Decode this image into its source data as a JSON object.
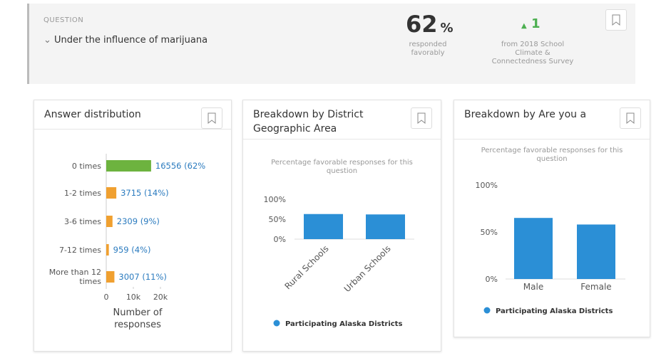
{
  "header": {
    "label": "QUESTION",
    "question": "Under the influence of marijuana",
    "score": "62",
    "score_unit": "%",
    "score_caption": "responded favorably",
    "change": "1",
    "change_caption": "from 2018 School Climate & Connectedness Survey"
  },
  "chart_data": [
    {
      "type": "hbar",
      "title": "Answer distribution",
      "categories": [
        "0 times",
        "1-2 times",
        "3-6 times",
        "7-12 times",
        "More than 12 times"
      ],
      "values": [
        16556,
        3715,
        2309,
        959,
        3007
      ],
      "value_labels": [
        "16556 (62%",
        "3715 (14%)",
        "2309 (9%)",
        "959 (4%)",
        "3007 (11%)"
      ],
      "colors": [
        "#6db33f",
        "#f0a030",
        "#f0a030",
        "#f0a030",
        "#f0a030"
      ],
      "xlim": [
        0,
        20000
      ],
      "xticks": [
        0,
        {
          "value": 10000,
          "label": "10k"
        },
        {
          "value": 20000,
          "label": "20k"
        }
      ],
      "x_label": "Number of responses"
    },
    {
      "type": "bar",
      "title": "Breakdown by District Geographic Area",
      "subtitle": "Percentage favorable responses for this question",
      "categories": [
        "Rural Schools",
        "Urban Schools"
      ],
      "values": [
        63,
        62
      ],
      "color": "#2b8fd6",
      "ylim": [
        0,
        100
      ],
      "yticks": [
        {
          "value": 0,
          "label": "0%"
        },
        {
          "value": 50,
          "label": "50%"
        },
        {
          "value": 100,
          "label": "100%"
        }
      ],
      "legend": "Participating Alaska Districts",
      "rotated_labels": true
    },
    {
      "type": "bar",
      "title": "Breakdown by Are you a",
      "subtitle": "Percentage favorable responses for this question",
      "categories": [
        "Male",
        "Female"
      ],
      "values": [
        65,
        58
      ],
      "color": "#2b8fd6",
      "ylim": [
        0,
        100
      ],
      "yticks": [
        {
          "value": 0,
          "label": "0%"
        },
        {
          "value": 50,
          "label": "50%"
        },
        {
          "value": 100,
          "label": "100%"
        }
      ],
      "legend": "Participating Alaska Districts",
      "rotated_labels": false
    }
  ]
}
